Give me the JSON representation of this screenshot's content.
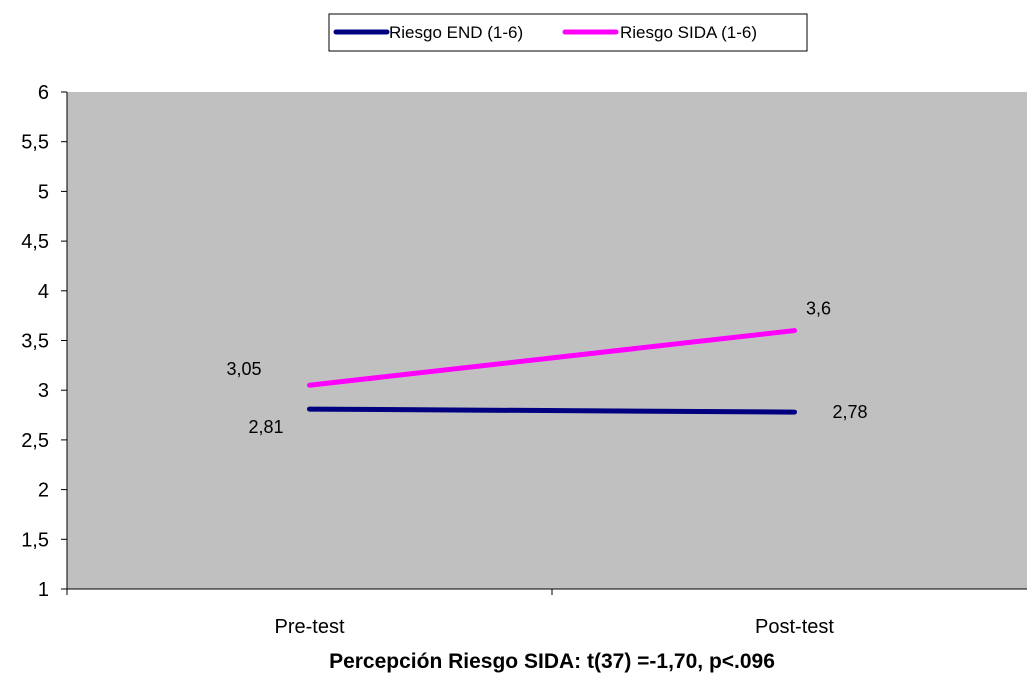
{
  "chart_data": {
    "type": "line",
    "title": "Percepción Riesgo SIDA: t(37) =-1,70, p<.096",
    "categories": [
      "Pre-test",
      "Post-test"
    ],
    "series": [
      {
        "name": "Riesgo END (1-6)",
        "values": [
          2.81,
          2.78
        ],
        "labels": [
          "2,81",
          "2,78"
        ],
        "color": "#000080"
      },
      {
        "name": "Riesgo SIDA (1-6)",
        "values": [
          3.05,
          3.6
        ],
        "labels": [
          "3,05",
          "3,6"
        ],
        "color": "#FF00FF"
      }
    ],
    "ylim": [
      1,
      6
    ],
    "yticks": [
      1,
      1.5,
      2,
      2.5,
      3,
      3.5,
      4,
      4.5,
      5,
      5.5,
      6
    ],
    "ytick_labels": [
      "1",
      "1,5",
      "2",
      "2,5",
      "3",
      "3,5",
      "4",
      "4,5",
      "5",
      "5,5",
      "6"
    ],
    "xlabel": "",
    "ylabel": "",
    "grid": false,
    "legend_position": "top-center",
    "plot_background": "#C0C0C0"
  }
}
